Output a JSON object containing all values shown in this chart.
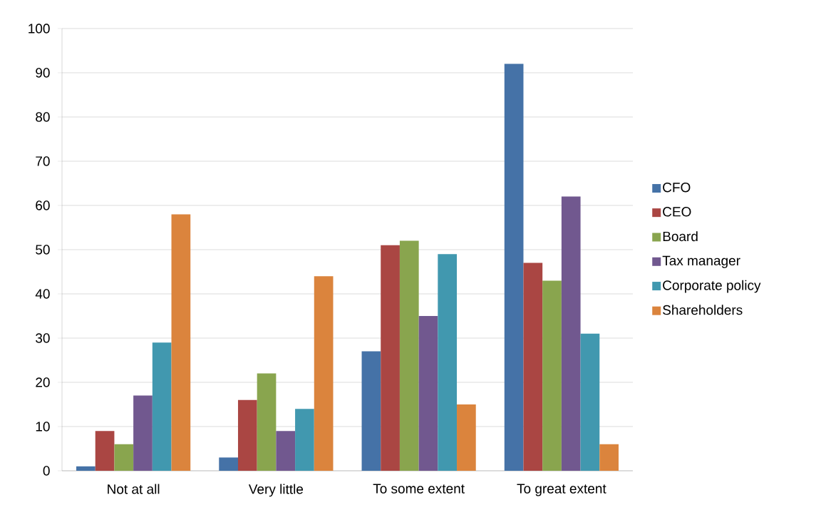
{
  "chart_data": {
    "type": "bar",
    "categories": [
      "Not at all",
      "Very little",
      "To some extent",
      "To great extent"
    ],
    "series": [
      {
        "name": "CFO",
        "color": "#4572a7",
        "values": [
          1,
          3,
          27,
          92
        ]
      },
      {
        "name": "CEO",
        "color": "#aa4643",
        "values": [
          9,
          16,
          51,
          47
        ]
      },
      {
        "name": "Board",
        "color": "#89a54e",
        "values": [
          6,
          22,
          52,
          43
        ]
      },
      {
        "name": "Tax manager",
        "color": "#71588f",
        "values": [
          17,
          9,
          35,
          62
        ]
      },
      {
        "name": "Corporate policy",
        "color": "#4198af",
        "values": [
          29,
          14,
          49,
          31
        ]
      },
      {
        "name": "Shareholders",
        "color": "#db843d",
        "values": [
          58,
          44,
          15,
          6
        ]
      }
    ],
    "ylim": [
      0,
      100
    ],
    "yticks": [
      0,
      10,
      20,
      30,
      40,
      50,
      60,
      70,
      80,
      90,
      100
    ],
    "grid": "y",
    "legend": "right"
  }
}
